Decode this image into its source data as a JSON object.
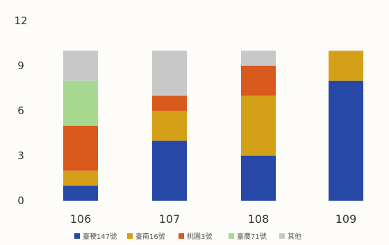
{
  "chart_data": {
    "type": "bar",
    "stacked": true,
    "categories": [
      "106",
      "107",
      "108",
      "109"
    ],
    "series": [
      {
        "name": "臺稉147號",
        "color": "#2848a8",
        "values": [
          1,
          4,
          3,
          8
        ]
      },
      {
        "name": "臺南16號",
        "color": "#d4a017",
        "values": [
          1,
          2,
          4,
          2
        ]
      },
      {
        "name": "桃園3號",
        "color": "#d95a1c",
        "values": [
          3,
          1,
          2,
          0
        ]
      },
      {
        "name": "臺農71號",
        "color": "#a8d890",
        "values": [
          3,
          0,
          0,
          0
        ]
      },
      {
        "name": "其他",
        "color": "#c8c8c8",
        "values": [
          2,
          3,
          1,
          0
        ]
      }
    ],
    "yticks": [
      0,
      3,
      6,
      9,
      12
    ],
    "ylim": [
      0,
      12
    ],
    "grid": false,
    "legend_position": "bottom"
  }
}
